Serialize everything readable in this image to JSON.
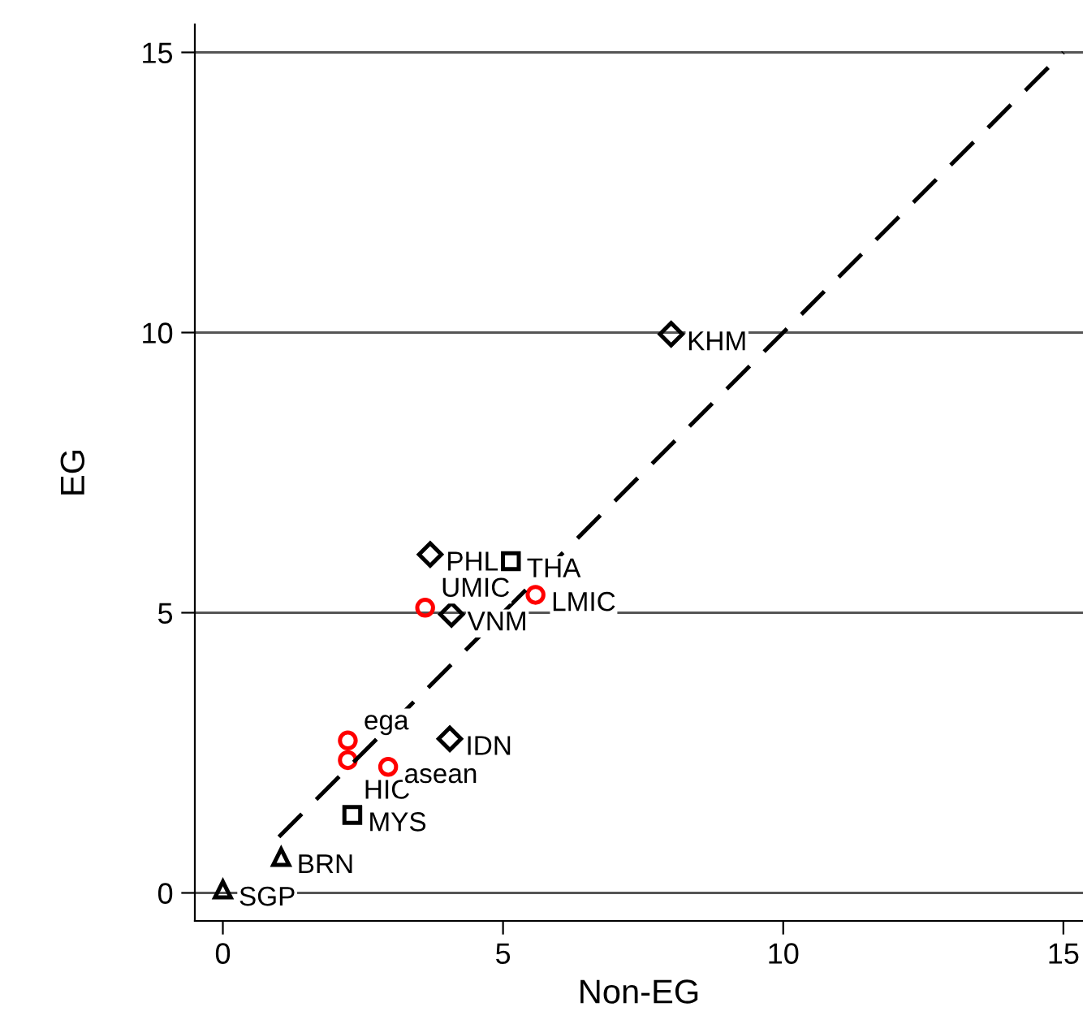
{
  "chart_data": {
    "type": "scatter",
    "xlabel": "Non-EG",
    "ylabel": "EG",
    "xlim": [
      -0.5,
      15.35
    ],
    "ylim": [
      -0.5,
      15.5
    ],
    "xticks": [
      0,
      5,
      10,
      15
    ],
    "yticks": [
      0,
      5,
      10,
      15
    ],
    "grid": "y",
    "series": [
      {
        "color": "#000000",
        "marker": "diamond",
        "x": [
          8.0,
          3.7,
          4.08,
          4.05
        ],
        "values": [
          9.97,
          6.04,
          4.97,
          2.75
        ]
      },
      {
        "color": "#000000",
        "marker": "square",
        "x": [
          5.14,
          2.31
        ],
        "values": [
          5.92,
          1.39
        ]
      },
      {
        "color": "#000000",
        "marker": "triangle",
        "x": [
          1.04,
          0
        ],
        "values": [
          0.64,
          0.06
        ]
      },
      {
        "color": "#ff0000",
        "marker": "circle",
        "x": [
          3.61,
          5.58,
          2.23,
          2.23,
          2.95
        ],
        "values": [
          5.09,
          5.32,
          2.72,
          2.37,
          2.25
        ]
      },
      {
        "type": "line",
        "color": "#000000",
        "marker": "none",
        "line_style": "dashed",
        "x": [
          1,
          15
        ],
        "values": [
          1,
          15
        ]
      }
    ],
    "annotations": [
      {
        "text": "KHM",
        "x": 8.0,
        "y": 9.97
      },
      {
        "text": "PHL",
        "x": 3.7,
        "y": 6.04
      },
      {
        "text": "VNM",
        "x": 4.08,
        "y": 4.97
      },
      {
        "text": "IDN",
        "x": 4.05,
        "y": 2.75
      },
      {
        "text": "THA",
        "x": 5.14,
        "y": 5.92
      },
      {
        "text": "MYS",
        "x": 2.31,
        "y": 1.39
      },
      {
        "text": "BRN",
        "x": 1.04,
        "y": 0.64
      },
      {
        "text": "SGP",
        "x": 0,
        "y": 0.06
      },
      {
        "text": "UMIC",
        "x": 3.61,
        "y": 5.09
      },
      {
        "text": "LMIC",
        "x": 5.58,
        "y": 5.32
      },
      {
        "text": "ega",
        "x": 2.23,
        "y": 2.72
      },
      {
        "text": "HIC",
        "x": 2.23,
        "y": 2.37
      },
      {
        "text": "asean",
        "x": 2.95,
        "y": 2.25
      }
    ]
  }
}
